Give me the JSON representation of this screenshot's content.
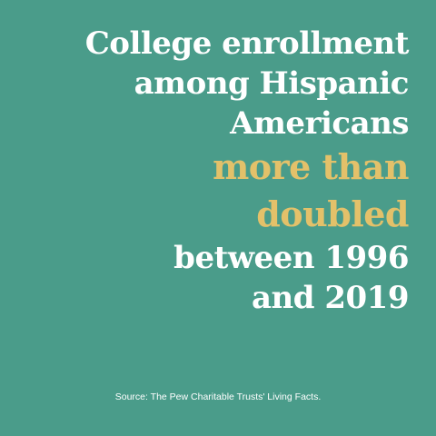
{
  "headline": {
    "line1": "College enrollment",
    "line2": "among Hispanic",
    "line3": "Americans",
    "highlight1": "more than",
    "highlight2": "doubled",
    "line4": "between 1996",
    "line5": "and 2019"
  },
  "source": "Source: The Pew Charitable Trusts' Living Facts.",
  "colors": {
    "background": "#4a9c8a",
    "text": "#ffffff",
    "accent": "#e3c16a"
  }
}
